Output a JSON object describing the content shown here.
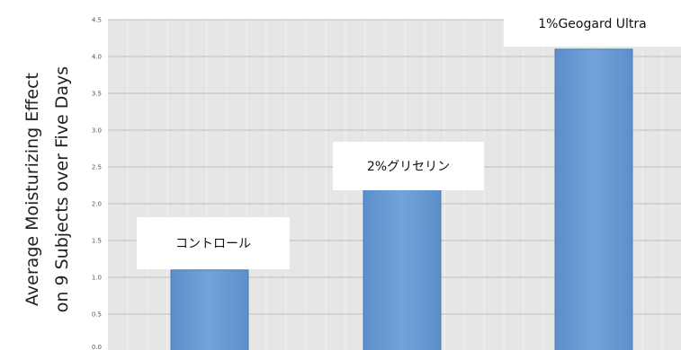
{
  "chart_data": {
    "type": "bar",
    "categories": [
      "コントロール",
      "2%グリセリン",
      "1%Geogard Ultra"
    ],
    "values": [
      1.1,
      2.2,
      4.1
    ],
    "title": "",
    "xlabel": "",
    "ylabel_line1": "Average   Moisturizing   Effect",
    "ylabel_line2": "on 9 Subjects over Five Days",
    "ylim": [
      0,
      4.5
    ],
    "y_ticks": [
      "0.0",
      "0.5",
      "1.0",
      "1.5",
      "2.0",
      "2.5",
      "3.0",
      "3.5",
      "4.0",
      "4.5"
    ],
    "grid": true,
    "bar_color": "#6A9BD2",
    "plot_background": "#E6E6E6"
  }
}
